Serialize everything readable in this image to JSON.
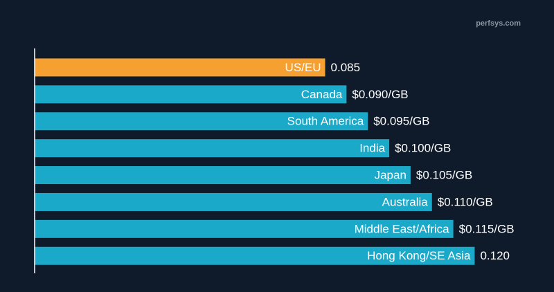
{
  "chart_data": {
    "type": "hbar",
    "watermark": "perfsys.com",
    "categories": [
      "US/EU",
      "Canada",
      "South America",
      "India",
      "Japan",
      "Australia",
      "Middle East/Africa",
      "Hong Kong/SE Asia"
    ],
    "values": [
      0.085,
      0.09,
      0.095,
      0.1,
      0.105,
      0.11,
      0.115,
      0.12
    ],
    "value_labels": [
      "0.085",
      "$0.090/GB",
      "$0.095/GB",
      "$0.100/GB",
      "$0.105/GB",
      "$0.110/GB",
      "$0.115/GB",
      "0.120"
    ],
    "colors": [
      "#f6a031",
      "#1ba9c9",
      "#1ba9c9",
      "#1ba9c9",
      "#1ba9c9",
      "#1ba9c9",
      "#1ba9c9",
      "#1ba9c9"
    ],
    "xlim": [
      0.017,
      0.135
    ]
  }
}
